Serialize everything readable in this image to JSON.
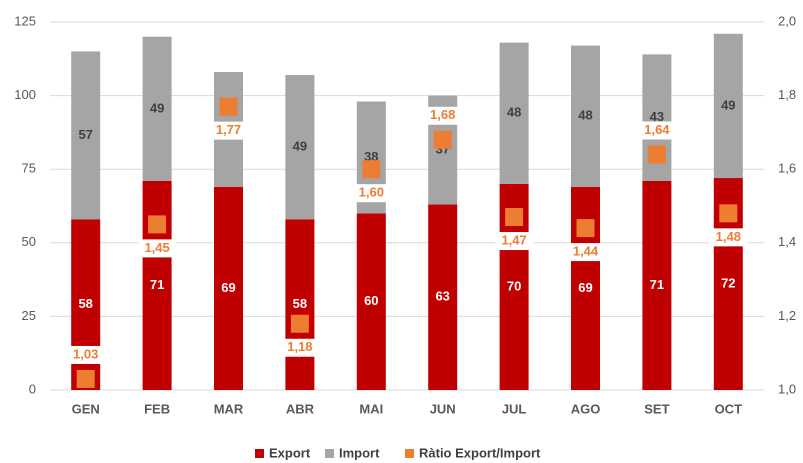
{
  "chart_data": {
    "type": "bar",
    "stacked": true,
    "categories": [
      "GEN",
      "FEB",
      "MAR",
      "ABR",
      "MAI",
      "JUN",
      "JUL",
      "AGO",
      "SET",
      "OCT"
    ],
    "series": [
      {
        "name": "Export",
        "color": "#c00000",
        "values": [
          58,
          71,
          69,
          58,
          60,
          63,
          70,
          69,
          71,
          72
        ]
      },
      {
        "name": "Import",
        "color": "#a5a5a5",
        "values": [
          57,
          49,
          39,
          49,
          38,
          37,
          48,
          48,
          43,
          49
        ]
      },
      {
        "name": "Ràtio Export/Import",
        "color": "#ed7d31",
        "axis": "y2",
        "marker": "square",
        "values": [
          1.03,
          1.45,
          1.77,
          1.18,
          1.6,
          1.68,
          1.47,
          1.44,
          1.64,
          1.48
        ],
        "value_labels": [
          "1,03",
          "1,45",
          "1,77",
          "1,18",
          "1,60",
          "1,68",
          "1,47",
          "1,44",
          "1,64",
          "1,48"
        ]
      }
    ],
    "ylim": [
      0,
      125
    ],
    "yticks": [
      0,
      25,
      50,
      75,
      100,
      125
    ],
    "y2lim": [
      1.0,
      2.0
    ],
    "y2ticks": [
      {
        "value": 1.0,
        "label": "1,0"
      },
      {
        "value": 1.2,
        "label": "1,2"
      },
      {
        "value": 1.4,
        "label": "1,4"
      },
      {
        "value": 1.6,
        "label": "1,6"
      },
      {
        "value": 1.8,
        "label": "1,8"
      },
      {
        "value": 2.0,
        "label": "2,0"
      }
    ],
    "grid": true,
    "legend": "bottom"
  }
}
